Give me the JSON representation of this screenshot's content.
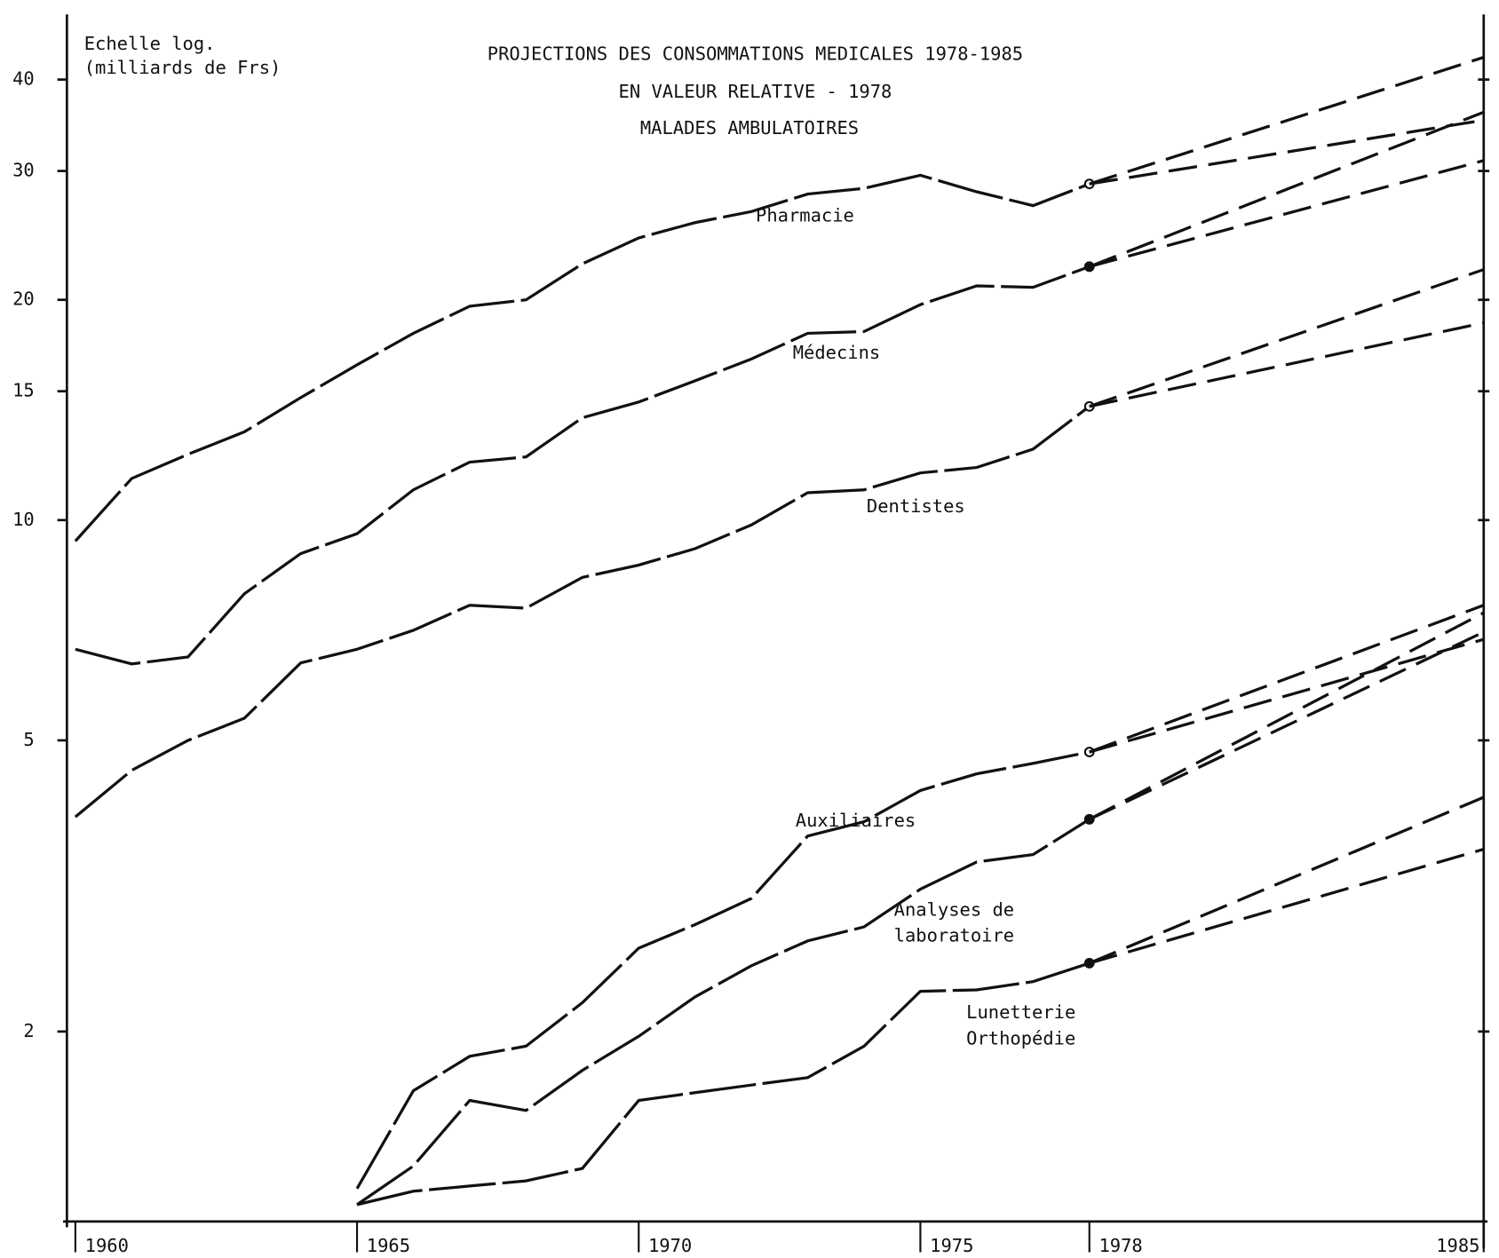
{
  "chart_data": {
    "type": "line",
    "title": [
      "PROJECTIONS DES CONSOMMATIONS MEDICALES 1978-1985",
      "EN VALEUR  RELATIVE  - 1978",
      "MALADES AMBULATOIRES"
    ],
    "y_label": [
      "Echelle log.",
      "(milliards de Frs)"
    ],
    "log_scale": true,
    "x": [
      1960,
      1961,
      1962,
      1963,
      1964,
      1965,
      1966,
      1967,
      1968,
      1969,
      1970,
      1971,
      1972,
      1973,
      1974,
      1975,
      1976,
      1977,
      1978,
      1985
    ],
    "xlim": [
      1959.85,
      1985
    ],
    "xticks": [
      1960,
      1965,
      1970,
      1975,
      1978,
      1985
    ],
    "ylim": [
      1.1,
      50
    ],
    "yticks": [
      2,
      5,
      10,
      15,
      20,
      30,
      40
    ],
    "series": [
      {
        "name": [
          "Pharmacie"
        ],
        "color": "#111111",
        "style": "solid",
        "marker": "open",
        "values": [
          9.36,
          11.4,
          12.3,
          13.2,
          14.7,
          16.3,
          18.0,
          19.6,
          20.0,
          22.4,
          24.3,
          25.5,
          26.4,
          27.9,
          28.4,
          29.6,
          28.1,
          26.9,
          28.8,
          null
        ]
      },
      {
        "name": [
          "Médecins"
        ],
        "color": "#111111",
        "style": "solid",
        "marker": "filled",
        "values": [
          6.66,
          6.36,
          6.5,
          7.93,
          9.0,
          9.58,
          11.0,
          12.0,
          12.2,
          13.8,
          14.5,
          15.5,
          16.6,
          18.0,
          18.1,
          19.7,
          20.9,
          20.8,
          22.2,
          null
        ]
      },
      {
        "name": [
          "Dentistes"
        ],
        "color": "#111111",
        "style": "solid",
        "marker": "open",
        "values": [
          3.93,
          4.55,
          5.0,
          5.36,
          6.38,
          6.66,
          7.07,
          7.65,
          7.58,
          8.35,
          8.68,
          9.14,
          9.85,
          10.9,
          11.0,
          11.6,
          11.8,
          12.5,
          14.3,
          null
        ]
      },
      {
        "name": [
          "Auxiliaires"
        ],
        "color": "#111111",
        "style": "solid",
        "marker": "open",
        "values": [
          null,
          null,
          null,
          null,
          null,
          1.22,
          1.66,
          1.85,
          1.91,
          2.19,
          2.6,
          2.8,
          3.04,
          3.7,
          3.87,
          4.27,
          4.5,
          4.65,
          4.82,
          null
        ]
      },
      {
        "name": [
          "Analyses de",
          "laboratoire"
        ],
        "color": "#111111",
        "style": "solid",
        "marker": "filled",
        "values": [
          null,
          null,
          null,
          null,
          null,
          1.16,
          1.31,
          1.61,
          1.56,
          1.77,
          1.97,
          2.23,
          2.46,
          2.66,
          2.78,
          3.13,
          3.41,
          3.49,
          3.9,
          null
        ]
      },
      {
        "name": [
          "Lunetterie",
          "Orthopédie"
        ],
        "color": "#111111",
        "style": "solid",
        "marker": "filled",
        "values": [
          null,
          null,
          null,
          null,
          null,
          1.16,
          1.21,
          1.23,
          1.25,
          1.3,
          1.61,
          1.65,
          1.69,
          1.73,
          1.91,
          2.27,
          2.28,
          2.34,
          2.48,
          null
        ]
      },
      {
        "color": "#111111",
        "style": "dashed",
        "values": [
          null,
          null,
          null,
          null,
          null,
          null,
          null,
          null,
          null,
          null,
          null,
          null,
          null,
          null,
          null,
          null,
          null,
          null,
          28.8,
          42.9
        ]
      },
      {
        "color": "#111111",
        "style": "dashed",
        "values": [
          null,
          null,
          null,
          null,
          null,
          null,
          null,
          null,
          null,
          null,
          null,
          null,
          null,
          null,
          null,
          null,
          null,
          null,
          28.8,
          35.2
        ]
      },
      {
        "color": "#111111",
        "style": "dashed",
        "values": [
          null,
          null,
          null,
          null,
          null,
          null,
          null,
          null,
          null,
          null,
          null,
          null,
          null,
          null,
          null,
          null,
          null,
          null,
          22.2,
          36.1
        ]
      },
      {
        "color": "#111111",
        "style": "dashed",
        "values": [
          null,
          null,
          null,
          null,
          null,
          null,
          null,
          null,
          null,
          null,
          null,
          null,
          null,
          null,
          null,
          null,
          null,
          null,
          22.2,
          31.0
        ]
      },
      {
        "color": "#111111",
        "style": "dashed",
        "values": [
          null,
          null,
          null,
          null,
          null,
          null,
          null,
          null,
          null,
          null,
          null,
          null,
          null,
          null,
          null,
          null,
          null,
          null,
          14.3,
          22.0
        ]
      },
      {
        "color": "#111111",
        "style": "dashed",
        "values": [
          null,
          null,
          null,
          null,
          null,
          null,
          null,
          null,
          null,
          null,
          null,
          null,
          null,
          null,
          null,
          null,
          null,
          null,
          14.3,
          18.6
        ]
      },
      {
        "color": "#111111",
        "style": "dashed",
        "values": [
          null,
          null,
          null,
          null,
          null,
          null,
          null,
          null,
          null,
          null,
          null,
          null,
          null,
          null,
          null,
          null,
          null,
          null,
          4.82,
          7.65
        ]
      },
      {
        "color": "#111111",
        "style": "dashed",
        "values": [
          null,
          null,
          null,
          null,
          null,
          null,
          null,
          null,
          null,
          null,
          null,
          null,
          null,
          null,
          null,
          null,
          null,
          null,
          4.82,
          6.87
        ]
      },
      {
        "color": "#111111",
        "style": "dashed",
        "values": [
          null,
          null,
          null,
          null,
          null,
          null,
          null,
          null,
          null,
          null,
          null,
          null,
          null,
          null,
          null,
          null,
          null,
          null,
          3.9,
          7.47
        ]
      },
      {
        "color": "#111111",
        "style": "dashed",
        "values": [
          null,
          null,
          null,
          null,
          null,
          null,
          null,
          null,
          null,
          null,
          null,
          null,
          null,
          null,
          null,
          null,
          null,
          null,
          3.9,
          7.03
        ]
      },
      {
        "color": "#111111",
        "style": "dashed",
        "values": [
          null,
          null,
          null,
          null,
          null,
          null,
          null,
          null,
          null,
          null,
          null,
          null,
          null,
          null,
          null,
          null,
          null,
          null,
          2.48,
          4.18
        ]
      },
      {
        "color": "#111111",
        "style": "dashed",
        "values": [
          null,
          null,
          null,
          null,
          null,
          null,
          null,
          null,
          null,
          null,
          null,
          null,
          null,
          null,
          null,
          null,
          null,
          null,
          2.48,
          3.55
        ]
      }
    ]
  }
}
